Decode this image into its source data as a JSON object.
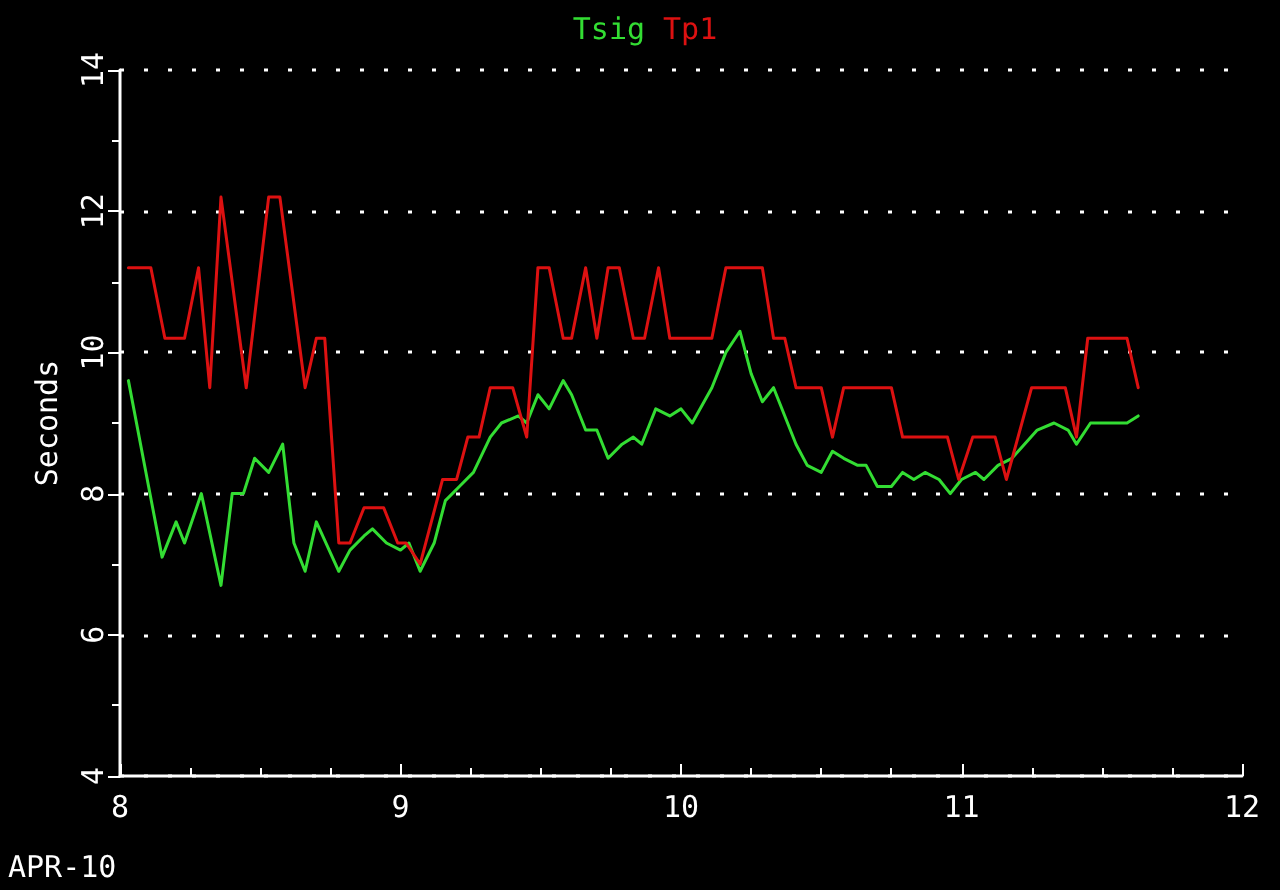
{
  "chart_data": {
    "type": "line",
    "xlabel": "APR-10",
    "ylabel": "Seconds",
    "xlim": [
      8,
      12
    ],
    "xticks": [
      8,
      9,
      10,
      11,
      12
    ],
    "ylim": [
      4,
      14
    ],
    "yticks": [
      4,
      6,
      8,
      10,
      12,
      14
    ],
    "grid": "y",
    "legend": "top",
    "marker": "none",
    "line_style": "solid",
    "series": [
      {
        "name": "Tsig",
        "color": "#33dd33",
        "x": [
          8.03,
          8.15,
          8.2,
          8.23,
          8.29,
          8.36,
          8.4,
          8.44,
          8.48,
          8.53,
          8.58,
          8.62,
          8.66,
          8.7,
          8.78,
          8.82,
          8.87,
          8.9,
          8.95,
          9.0,
          9.03,
          9.07,
          9.12,
          9.16,
          9.21,
          9.26,
          9.32,
          9.36,
          9.42,
          9.45,
          9.49,
          9.53,
          9.58,
          9.61,
          9.66,
          9.7,
          9.74,
          9.79,
          9.83,
          9.86,
          9.91,
          9.96,
          10.0,
          10.04,
          10.11,
          10.16,
          10.21,
          10.25,
          10.29,
          10.33,
          10.37,
          10.41,
          10.45,
          10.5,
          10.54,
          10.58,
          10.63,
          10.66,
          10.7,
          10.75,
          10.79,
          10.83,
          10.87,
          10.92,
          10.96,
          11.0,
          11.05,
          11.08,
          11.13,
          11.18,
          11.27,
          11.33,
          11.38,
          11.41,
          11.46,
          11.53,
          11.59,
          11.63
        ],
        "values": [
          9.6,
          7.1,
          7.6,
          7.3,
          8.0,
          6.7,
          8.0,
          8.0,
          8.5,
          8.3,
          8.7,
          7.3,
          6.9,
          7.6,
          6.9,
          7.2,
          7.4,
          7.5,
          7.3,
          7.2,
          7.3,
          6.9,
          7.3,
          7.9,
          8.1,
          8.3,
          8.8,
          9.0,
          9.1,
          9.0,
          9.4,
          9.2,
          9.6,
          9.4,
          8.9,
          8.9,
          8.5,
          8.7,
          8.8,
          8.7,
          9.2,
          9.1,
          9.2,
          9.0,
          9.5,
          10.0,
          10.3,
          9.7,
          9.3,
          9.5,
          9.1,
          8.7,
          8.4,
          8.3,
          8.6,
          8.5,
          8.4,
          8.4,
          8.1,
          8.1,
          8.3,
          8.2,
          8.3,
          8.2,
          8.0,
          8.2,
          8.3,
          8.2,
          8.4,
          8.5,
          8.9,
          9.0,
          8.9,
          8.7,
          9.0,
          9.0,
          9.0,
          9.1
        ]
      },
      {
        "name": "Tp1",
        "color": "#dd1111",
        "x": [
          8.03,
          8.11,
          8.16,
          8.23,
          8.28,
          8.32,
          8.36,
          8.45,
          8.53,
          8.57,
          8.66,
          8.7,
          8.73,
          8.78,
          8.82,
          8.87,
          8.94,
          8.99,
          9.02,
          9.07,
          9.15,
          9.2,
          9.24,
          9.28,
          9.32,
          9.4,
          9.45,
          9.49,
          9.53,
          9.58,
          9.61,
          9.66,
          9.7,
          9.74,
          9.78,
          9.83,
          9.87,
          9.92,
          9.96,
          10.11,
          10.16,
          10.29,
          10.33,
          10.37,
          10.41,
          10.5,
          10.54,
          10.58,
          10.75,
          10.79,
          10.95,
          10.99,
          11.04,
          11.12,
          11.16,
          11.25,
          11.37,
          11.41,
          11.45,
          11.59,
          11.63
        ],
        "values": [
          11.2,
          11.2,
          10.2,
          10.2,
          11.2,
          9.5,
          12.2,
          9.5,
          12.2,
          12.2,
          9.5,
          10.2,
          10.2,
          7.3,
          7.3,
          7.8,
          7.8,
          7.3,
          7.3,
          7.0,
          8.2,
          8.2,
          8.8,
          8.8,
          9.5,
          9.5,
          8.8,
          11.2,
          11.2,
          10.2,
          10.2,
          11.2,
          10.2,
          11.2,
          11.2,
          10.2,
          10.2,
          11.2,
          10.2,
          10.2,
          11.2,
          11.2,
          10.2,
          10.2,
          9.5,
          9.5,
          8.8,
          9.5,
          9.5,
          8.8,
          8.8,
          8.2,
          8.8,
          8.8,
          8.2,
          9.5,
          9.5,
          8.8,
          10.2,
          10.2,
          9.5
        ]
      }
    ]
  }
}
